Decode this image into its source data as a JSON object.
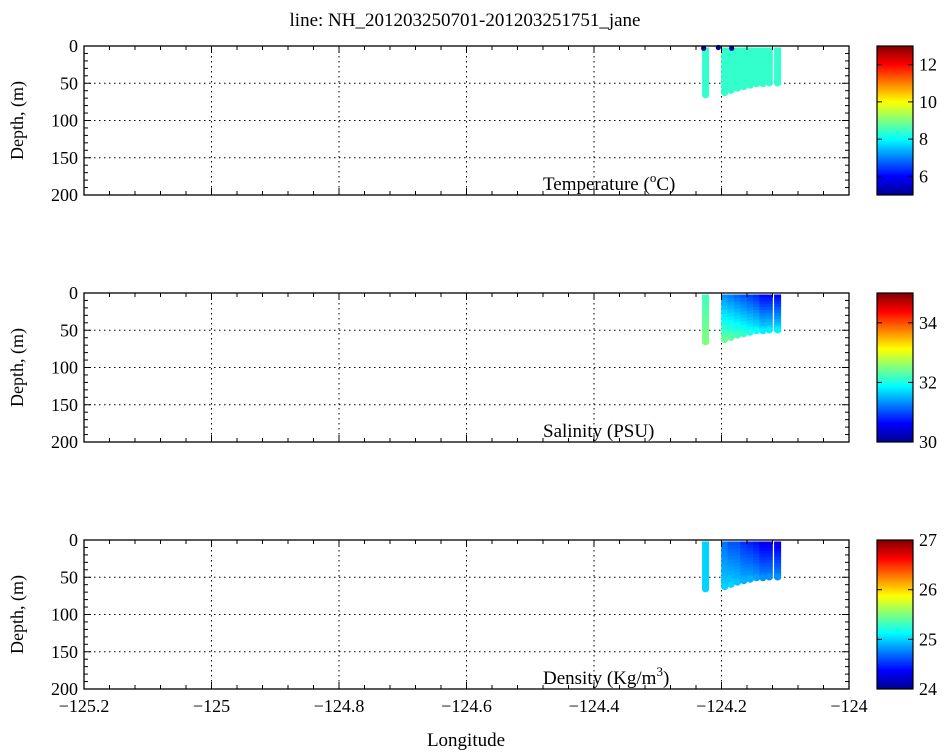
{
  "title": "line: NH_201203250701-201203251751_jane",
  "xlabel": "Longitude",
  "chart_data": [
    {
      "type": "scatter",
      "variable": "Temperature",
      "label_main": "Temperature (",
      "label_sup": "o",
      "label_tail": "C)",
      "ylabel": "Depth, (m)",
      "xlim": [
        -125.2,
        -124.0
      ],
      "ylim": [
        0,
        200
      ],
      "y_reversed": true,
      "x_ticks": [
        "-125.2",
        "-125",
        "-124.8",
        "-124.6",
        "-124.4",
        "-124.2",
        "-124"
      ],
      "y_ticks": [
        "0",
        "50",
        "100",
        "150",
        "200"
      ],
      "grid": true,
      "colorbar": {
        "range": [
          5,
          13
        ],
        "ticks": [
          "6",
          "8",
          "10",
          "12"
        ],
        "colormap": "jet"
      },
      "profiles": [
        {
          "lon": -124.225,
          "top": 2,
          "bottom": 67,
          "value_top": 8.4,
          "value_bottom": 8.4
        },
        {
          "lon": -124.195,
          "top": 2,
          "bottom": 64,
          "value_top": 8.4,
          "value_bottom": 8.4
        },
        {
          "lon": -124.185,
          "top": 2,
          "bottom": 61,
          "value_top": 8.4,
          "value_bottom": 8.4
        },
        {
          "lon": -124.175,
          "top": 2,
          "bottom": 58,
          "value_top": 8.4,
          "value_bottom": 8.4
        },
        {
          "lon": -124.165,
          "top": 2,
          "bottom": 56,
          "value_top": 8.4,
          "value_bottom": 8.4
        },
        {
          "lon": -124.155,
          "top": 2,
          "bottom": 54,
          "value_top": 8.4,
          "value_bottom": 8.4
        },
        {
          "lon": -124.145,
          "top": 2,
          "bottom": 52,
          "value_top": 8.4,
          "value_bottom": 8.4
        },
        {
          "lon": -124.135,
          "top": 2,
          "bottom": 52,
          "value_top": 8.4,
          "value_bottom": 8.4
        },
        {
          "lon": -124.125,
          "top": 2,
          "bottom": 51,
          "value_top": 8.4,
          "value_bottom": 8.4
        },
        {
          "lon": -124.112,
          "top": 2,
          "bottom": 51,
          "value_top": 8.4,
          "value_bottom": 8.4
        }
      ],
      "points": [
        {
          "lon": -124.228,
          "depth": 3,
          "value": 5.0
        },
        {
          "lon": -124.205,
          "depth": 2,
          "value": 5.3
        },
        {
          "lon": -124.184,
          "depth": 3,
          "value": 5.2
        }
      ]
    },
    {
      "type": "scatter",
      "variable": "Salinity",
      "label_main": "Salinity (PSU)",
      "label_sup": "",
      "label_tail": "",
      "ylabel": "Depth, (m)",
      "xlim": [
        -125.2,
        -124.0
      ],
      "ylim": [
        0,
        200
      ],
      "y_reversed": true,
      "x_ticks": [
        "-125.2",
        "-125",
        "-124.8",
        "-124.6",
        "-124.4",
        "-124.2",
        "-124"
      ],
      "y_ticks": [
        "0",
        "50",
        "100",
        "150",
        "200"
      ],
      "grid": true,
      "colorbar": {
        "range": [
          30,
          35
        ],
        "ticks": [
          "30",
          "32",
          "34"
        ],
        "colormap": "jet"
      },
      "profiles": [
        {
          "lon": -124.225,
          "top": 2,
          "bottom": 67,
          "value_top": 32.2,
          "value_bottom": 32.5
        },
        {
          "lon": -124.195,
          "top": 2,
          "bottom": 64,
          "value_top": 31.3,
          "value_bottom": 32.4
        },
        {
          "lon": -124.185,
          "top": 2,
          "bottom": 61,
          "value_top": 31.2,
          "value_bottom": 32.3
        },
        {
          "lon": -124.175,
          "top": 2,
          "bottom": 58,
          "value_top": 31.1,
          "value_bottom": 32.2
        },
        {
          "lon": -124.165,
          "top": 2,
          "bottom": 56,
          "value_top": 31.0,
          "value_bottom": 32.1
        },
        {
          "lon": -124.155,
          "top": 2,
          "bottom": 54,
          "value_top": 30.9,
          "value_bottom": 32.0
        },
        {
          "lon": -124.145,
          "top": 2,
          "bottom": 52,
          "value_top": 30.8,
          "value_bottom": 31.9
        },
        {
          "lon": -124.135,
          "top": 2,
          "bottom": 52,
          "value_top": 30.6,
          "value_bottom": 31.8
        },
        {
          "lon": -124.125,
          "top": 2,
          "bottom": 51,
          "value_top": 30.6,
          "value_bottom": 31.8
        },
        {
          "lon": -124.112,
          "top": 2,
          "bottom": 51,
          "value_top": 30.6,
          "value_bottom": 31.8
        }
      ],
      "points": []
    },
    {
      "type": "scatter",
      "variable": "Density",
      "label_main": "Density (Kg/m",
      "label_sup": "3",
      "label_tail": ")",
      "ylabel": "Depth, (m)",
      "xlim": [
        -125.2,
        -124.0
      ],
      "ylim": [
        0,
        200
      ],
      "y_reversed": true,
      "x_ticks": [
        "-125.2",
        "-125",
        "-124.8",
        "-124.6",
        "-124.4",
        "-124.2",
        "-124"
      ],
      "y_ticks": [
        "0",
        "50",
        "100",
        "150",
        "200"
      ],
      "grid": true,
      "colorbar": {
        "range": [
          24,
          27
        ],
        "ticks": [
          "24",
          "25",
          "26",
          "27"
        ],
        "colormap": "jet"
      },
      "profiles": [
        {
          "lon": -124.225,
          "top": 2,
          "bottom": 67,
          "value_top": 25.0,
          "value_bottom": 25.0
        },
        {
          "lon": -124.195,
          "top": 2,
          "bottom": 64,
          "value_top": 24.7,
          "value_bottom": 25.0
        },
        {
          "lon": -124.185,
          "top": 2,
          "bottom": 61,
          "value_top": 24.6,
          "value_bottom": 25.0
        },
        {
          "lon": -124.175,
          "top": 2,
          "bottom": 58,
          "value_top": 24.6,
          "value_bottom": 24.95
        },
        {
          "lon": -124.165,
          "top": 2,
          "bottom": 56,
          "value_top": 24.5,
          "value_bottom": 24.9
        },
        {
          "lon": -124.155,
          "top": 2,
          "bottom": 54,
          "value_top": 24.45,
          "value_bottom": 24.9
        },
        {
          "lon": -124.145,
          "top": 2,
          "bottom": 52,
          "value_top": 24.4,
          "value_bottom": 24.85
        },
        {
          "lon": -124.135,
          "top": 2,
          "bottom": 52,
          "value_top": 24.3,
          "value_bottom": 24.8
        },
        {
          "lon": -124.125,
          "top": 2,
          "bottom": 51,
          "value_top": 24.3,
          "value_bottom": 24.8
        },
        {
          "lon": -124.112,
          "top": 2,
          "bottom": 51,
          "value_top": 24.3,
          "value_bottom": 24.8
        }
      ],
      "points": []
    }
  ]
}
